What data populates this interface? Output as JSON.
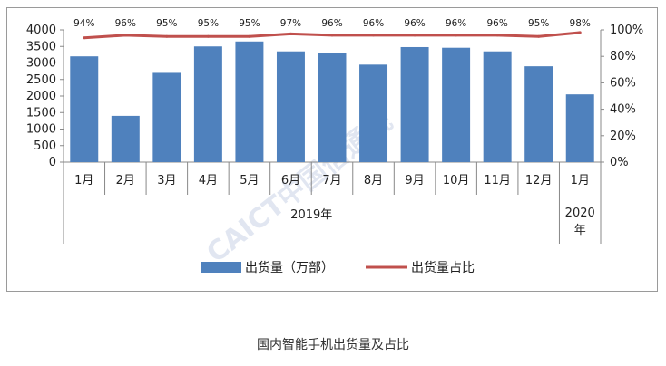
{
  "chart_data": {
    "type": "bar",
    "categories": [
      "1月",
      "2月",
      "3月",
      "4月",
      "5月",
      "6月",
      "7月",
      "8月",
      "9月",
      "10月",
      "11月",
      "12月",
      "1月"
    ],
    "groups": [
      {
        "label": "2019年",
        "count": 12
      },
      {
        "label": "2020年",
        "count": 1
      }
    ],
    "series": [
      {
        "name": "出货量（万部）",
        "type": "bar",
        "axis": "left",
        "color": "#4f81bd",
        "values": [
          3200,
          1400,
          2700,
          3500,
          3650,
          3350,
          3300,
          2950,
          3480,
          3460,
          3350,
          2900,
          2050
        ]
      },
      {
        "name": "出货量占比",
        "type": "line",
        "axis": "right",
        "color": "#c0504d",
        "values": [
          94,
          96,
          95,
          95,
          95,
          97,
          96,
          96,
          96,
          96,
          96,
          95,
          98
        ],
        "labels": [
          "94%",
          "96%",
          "95%",
          "95%",
          "95%",
          "97%",
          "96%",
          "96%",
          "96%",
          "96%",
          "96%",
          "95%",
          "98%"
        ]
      }
    ],
    "ylim_left": [
      0,
      4000
    ],
    "yticks_left": [
      "0",
      "500",
      "1000",
      "1500",
      "2000",
      "2500",
      "3000",
      "3500",
      "4000"
    ],
    "ylim_right": [
      0,
      100
    ],
    "yticks_right": [
      "0%",
      "20%",
      "40%",
      "60%",
      "80%",
      "100%"
    ],
    "legend_position": "bottom",
    "grid": false
  },
  "watermark": "CAICT中国信通院",
  "caption": "国内智能手机出货量及占比"
}
